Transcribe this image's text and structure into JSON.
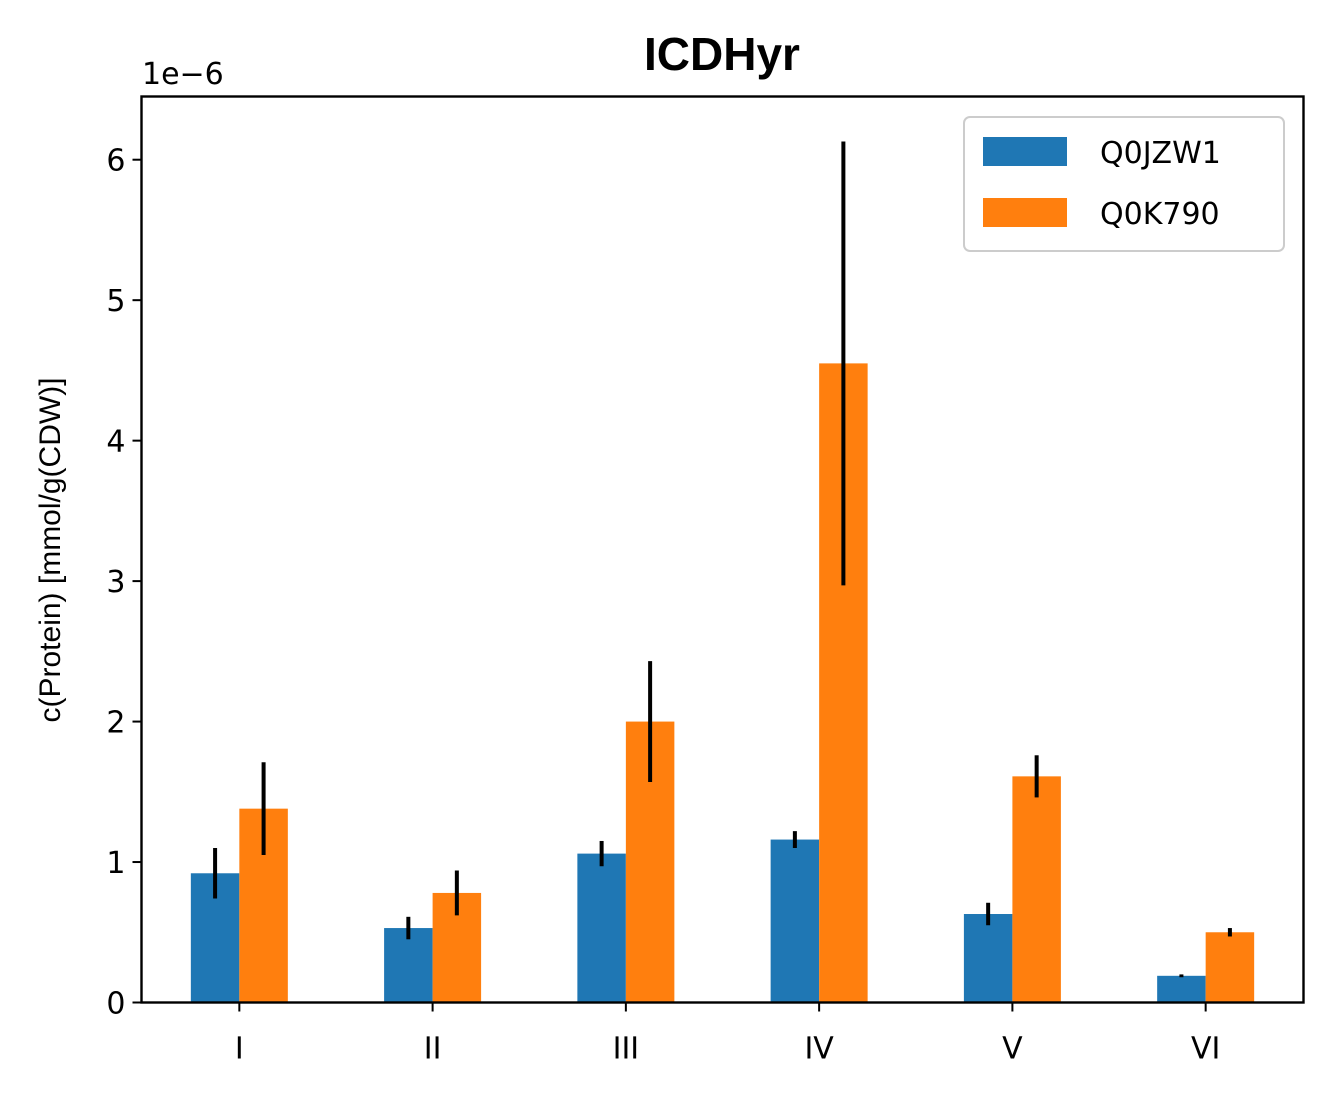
{
  "chart_data": {
    "type": "bar",
    "title": "ICDHyr",
    "ylabel": "c(Protein) [mmol/g(CDW)]",
    "xlabel": "",
    "offset_text": "1e−6",
    "categories": [
      "I",
      "II",
      "III",
      "IV",
      "V",
      "VI"
    ],
    "ylim": [
      0,
      6.45
    ],
    "yticks": [
      0,
      1,
      2,
      3,
      4,
      5,
      6
    ],
    "series": [
      {
        "name": "Q0JZW1",
        "color": "#1f77b4",
        "values": [
          0.92,
          0.53,
          1.06,
          1.16,
          0.63,
          0.19
        ],
        "errors": [
          0.18,
          0.08,
          0.09,
          0.06,
          0.08,
          0.01
        ]
      },
      {
        "name": "Q0K790",
        "color": "#ff7f0e",
        "values": [
          1.38,
          0.78,
          2.0,
          4.55,
          1.61,
          0.5
        ],
        "errors": [
          0.33,
          0.16,
          0.43,
          1.58,
          0.15,
          0.03
        ]
      }
    ],
    "grid": false,
    "legend_position": "top-right"
  }
}
